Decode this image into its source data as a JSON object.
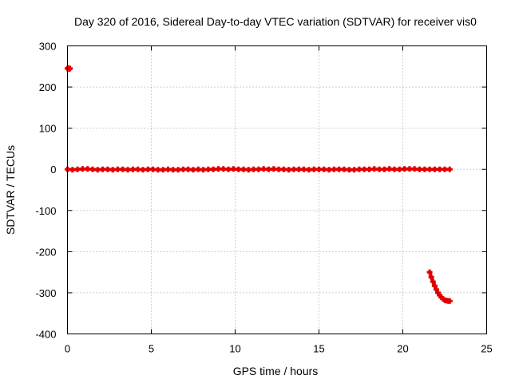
{
  "chart_data": {
    "type": "scatter",
    "title": "Day 320 of 2016, Sidereal Day-to-day VTEC variation (SDTVAR) for receiver vis0",
    "xlabel": "GPS time / hours",
    "ylabel": "SDTVAR / TECUs",
    "xlim": [
      0,
      25
    ],
    "ylim": [
      -400,
      300
    ],
    "xticks": [
      "0",
      "5",
      "10",
      "15",
      "20",
      "25"
    ],
    "yticks": [
      "300",
      "200",
      "100",
      "0",
      "-100",
      "-200",
      "-300",
      "-400"
    ],
    "grid": true,
    "marker": "cross",
    "color": "#e00000",
    "series": [
      {
        "x": [
          0.0,
          0.05,
          0.1,
          0.15
        ],
        "y": [
          245,
          246,
          244,
          245
        ]
      },
      {
        "x": [
          0.0,
          0.3,
          0.6,
          0.9,
          1.2,
          1.5,
          1.8,
          2.1,
          2.4,
          2.7,
          3.0,
          3.3,
          3.6,
          3.9,
          4.2,
          4.5,
          4.8,
          5.1,
          5.4,
          5.7,
          6.0,
          6.3,
          6.6,
          6.9,
          7.2,
          7.5,
          7.8,
          8.1,
          8.4,
          8.7,
          9.0,
          9.3,
          9.6,
          9.9,
          10.2,
          10.5,
          10.8,
          11.1,
          11.4,
          11.7,
          12.0,
          12.3,
          12.6,
          12.9,
          13.2,
          13.5,
          13.8,
          14.1,
          14.4,
          14.7,
          15.0,
          15.3,
          15.6,
          15.9,
          16.2,
          16.5,
          16.8,
          17.1,
          17.4,
          17.7,
          18.0,
          18.3,
          18.6,
          18.9,
          19.2,
          19.5,
          19.8,
          20.1,
          20.4,
          20.7,
          21.0,
          21.3,
          21.6,
          21.9,
          22.2,
          22.5,
          22.8
        ],
        "y": [
          0,
          -1,
          0,
          1,
          1,
          0,
          -1,
          0,
          0,
          -1,
          0,
          0,
          -1,
          0,
          0,
          -1,
          0,
          0,
          -1,
          -1,
          0,
          -1,
          -1,
          0,
          0,
          -1,
          0,
          -1,
          0,
          0,
          1,
          1,
          0,
          1,
          0,
          0,
          -1,
          0,
          0,
          1,
          0,
          1,
          0,
          0,
          -1,
          0,
          0,
          0,
          -1,
          0,
          0,
          0,
          -1,
          0,
          0,
          0,
          -1,
          -1,
          0,
          0,
          0,
          1,
          0,
          0,
          1,
          0,
          0,
          1,
          1,
          1,
          0,
          0,
          0,
          0,
          0,
          0,
          0
        ]
      },
      {
        "x": [
          21.6,
          21.7,
          21.8,
          21.9,
          22.0,
          22.1,
          22.2,
          22.3,
          22.4,
          22.5,
          22.6,
          22.7,
          22.8
        ],
        "y": [
          -250,
          -262,
          -273,
          -283,
          -292,
          -300,
          -306,
          -311,
          -315,
          -318,
          -319,
          -320,
          -320
        ]
      }
    ]
  }
}
